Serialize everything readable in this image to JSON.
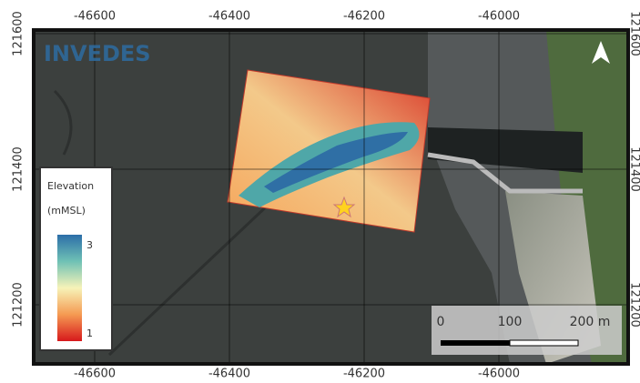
{
  "logo": "INVEDES",
  "x_ticks": [
    -46600,
    -46400,
    -46200,
    -46000
  ],
  "y_ticks": [
    121600,
    121400,
    121200
  ],
  "legend": {
    "title": "Elevation",
    "unit": "(mMSL)",
    "max": 3,
    "min": 1
  },
  "scale_bar": {
    "labels": [
      "0",
      "100",
      "200 m"
    ]
  }
}
